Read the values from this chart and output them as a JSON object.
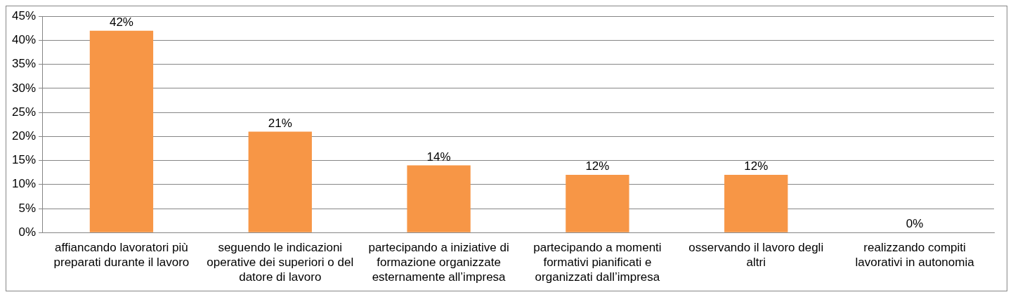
{
  "chart_data": {
    "type": "bar",
    "categories": [
      "affiancando lavoratori più preparati durante il lavoro",
      "seguendo le indicazioni operative dei superiori o del datore di lavoro",
      "partecipando a iniziative di formazione organizzate esternamente all’impresa",
      "partecipando a momenti formativi pianificati e organizzati dall’impresa",
      "osservando il lavoro degli altri",
      "realizzando compiti lavorativi in autonomia"
    ],
    "values": [
      42,
      21,
      14,
      12,
      12,
      0
    ],
    "value_labels": [
      "42%",
      "21%",
      "14%",
      "12%",
      "12%",
      "0%"
    ],
    "color": "#f79646",
    "ylim": [
      0,
      45
    ],
    "yticks": [
      {
        "value": 0,
        "label": "0%"
      },
      {
        "value": 5,
        "label": "5%"
      },
      {
        "value": 10,
        "label": "10%"
      },
      {
        "value": 15,
        "label": "15%"
      },
      {
        "value": 20,
        "label": "20%"
      },
      {
        "value": 25,
        "label": "25%"
      },
      {
        "value": 30,
        "label": "30%"
      },
      {
        "value": 35,
        "label": "35%"
      },
      {
        "value": 40,
        "label": "40%"
      },
      {
        "value": 45,
        "label": "45%"
      }
    ],
    "grid": "y",
    "legend": false
  }
}
